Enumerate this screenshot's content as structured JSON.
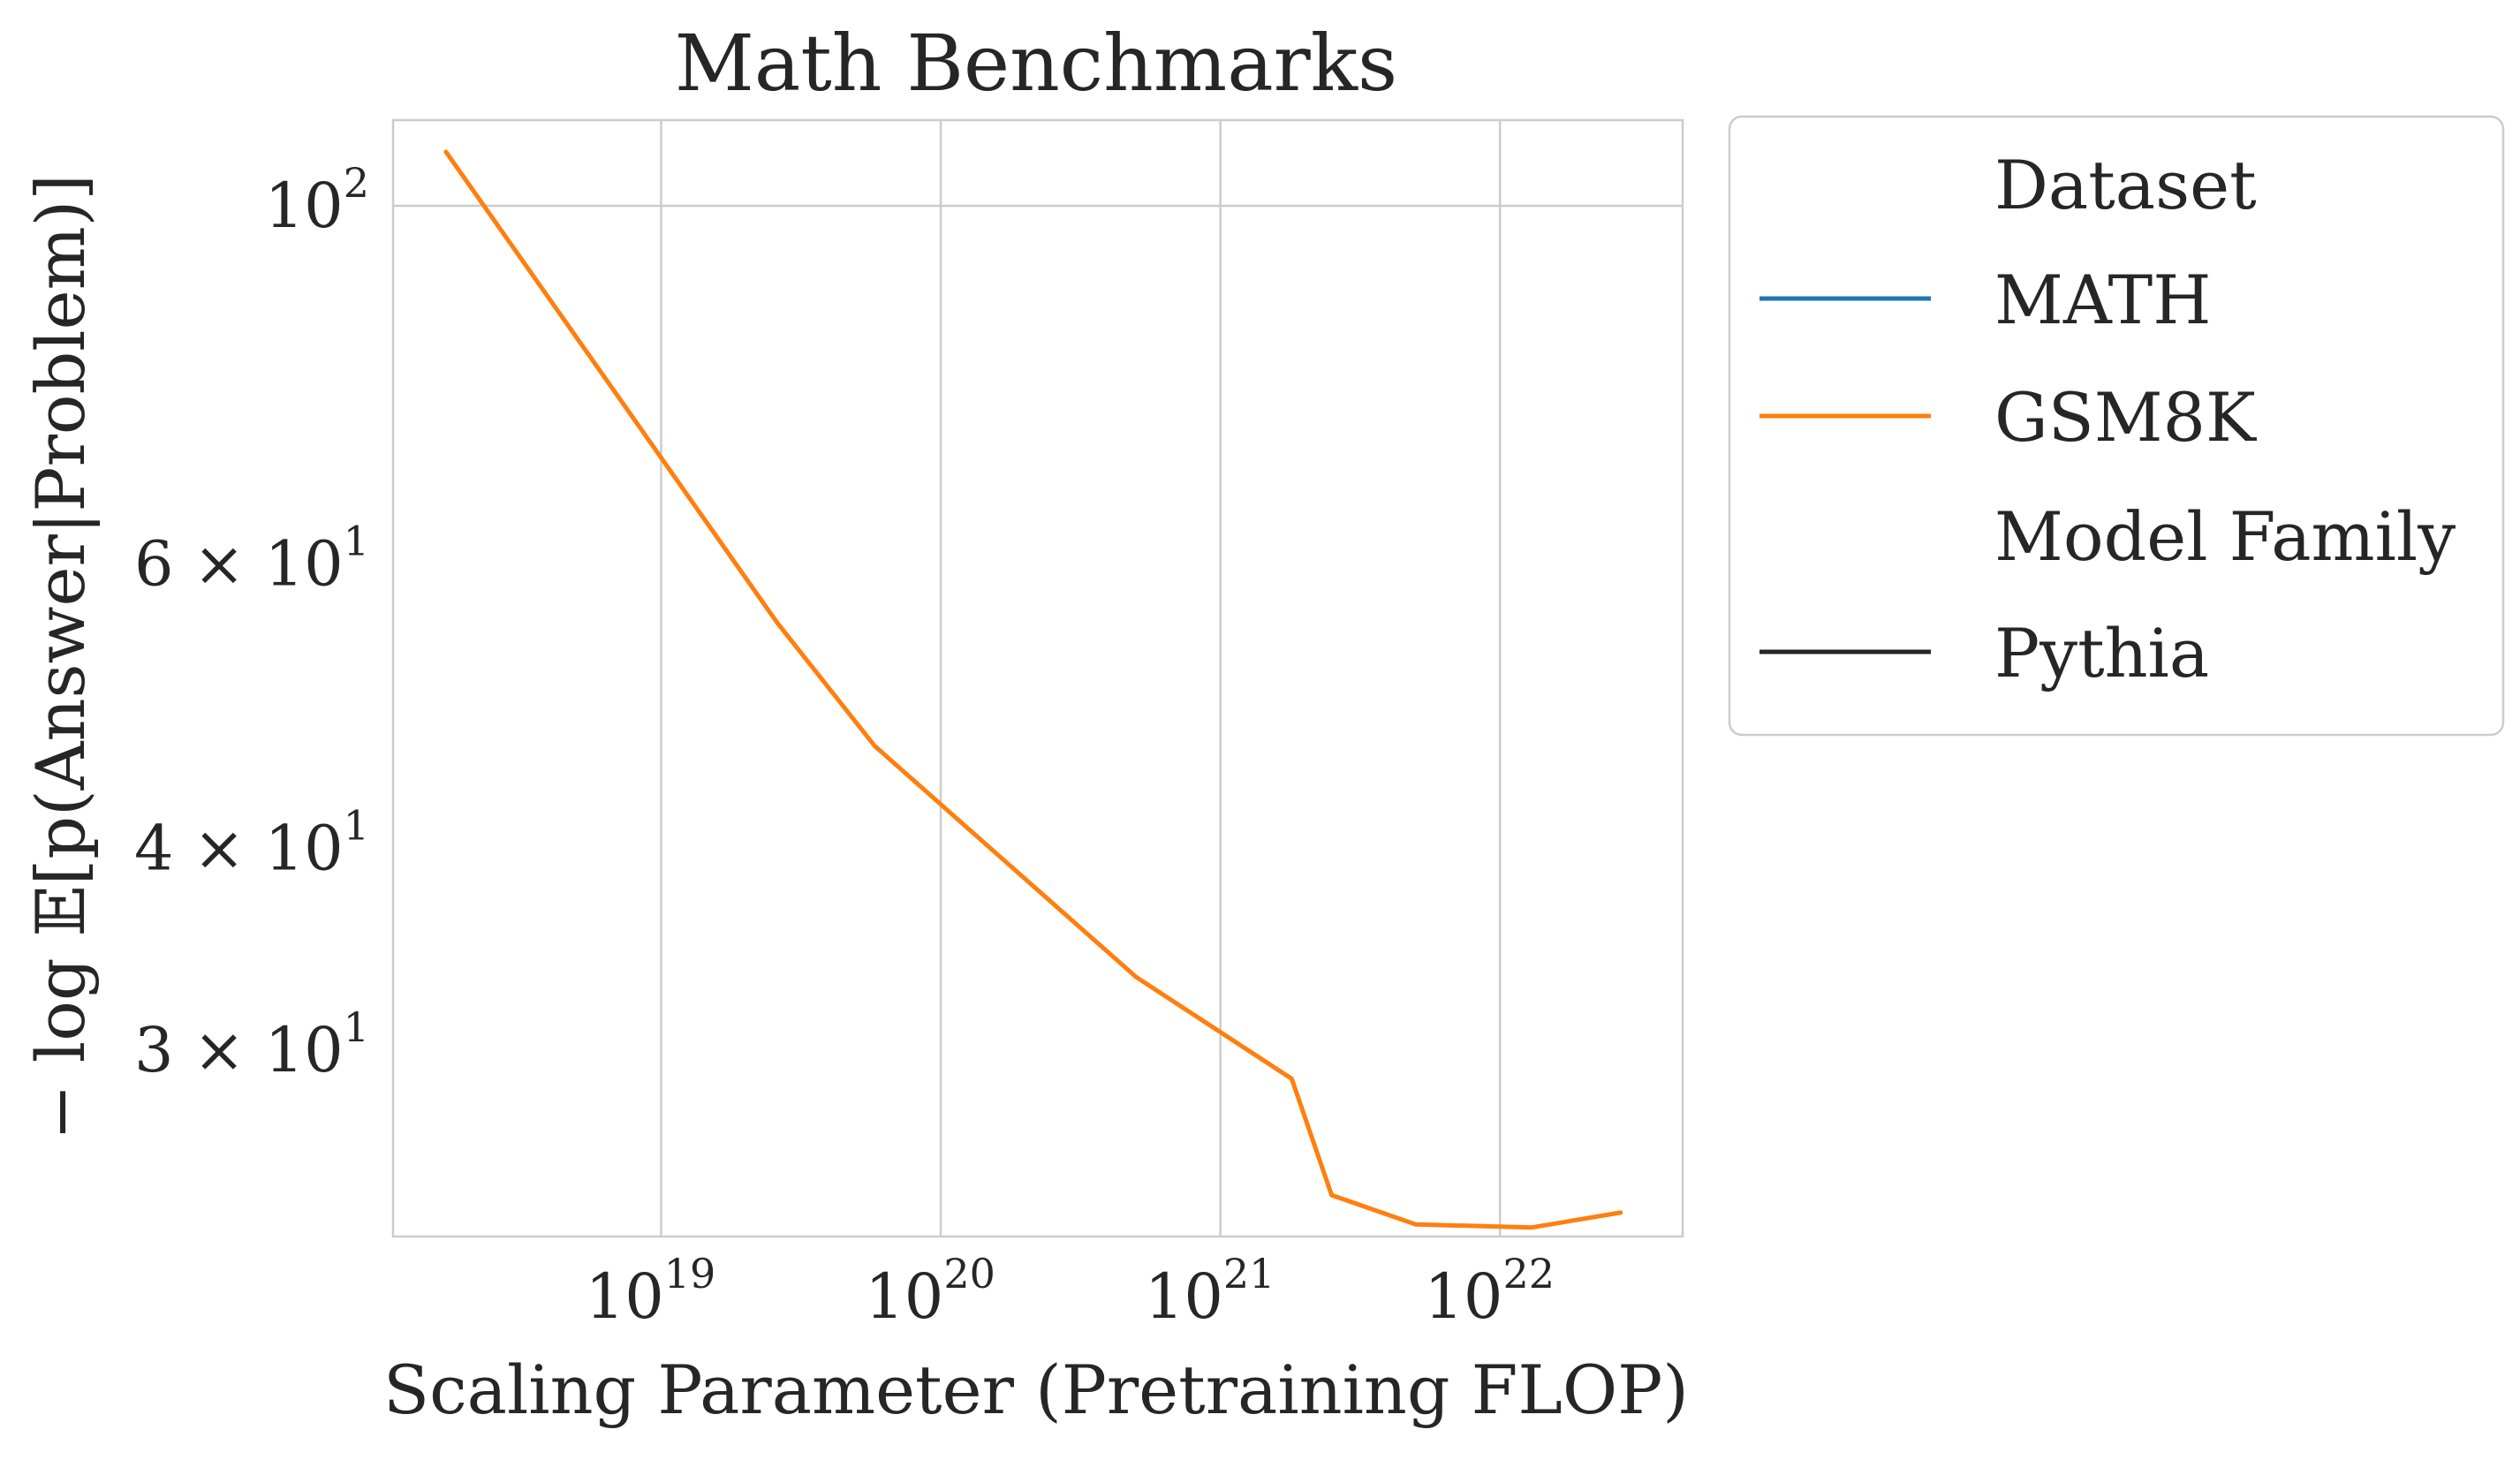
{
  "chart_data": {
    "type": "line",
    "title": "Math Benchmarks",
    "xlabel": "Scaling Parameter (Pretraining FLOP)",
    "ylabel": "− log 𝔼[p(Answer|Problem)]",
    "x_scale": "log",
    "y_scale": "log",
    "xlim": [
      1.1e+18,
      4.5e+22
    ],
    "ylim": [
      23,
      113
    ],
    "grid": true,
    "x_ticks": [
      {
        "value": 1e+19,
        "base": "10",
        "exp": "19"
      },
      {
        "value": 1e+20,
        "base": "10",
        "exp": "20"
      },
      {
        "value": 1e+21,
        "base": "10",
        "exp": "21"
      },
      {
        "value": 1e+22,
        "base": "10",
        "exp": "22"
      }
    ],
    "y_ticks": [
      {
        "value": 100,
        "base": "10",
        "exp": "2"
      },
      {
        "value": 60,
        "base": "6 × 10",
        "exp": "1"
      },
      {
        "value": 40,
        "base": "4 × 10",
        "exp": "1"
      },
      {
        "value": 30,
        "base": "3 × 10",
        "exp": "1"
      }
    ],
    "y_gridlines": [
      100
    ],
    "legend": {
      "placement": "outside-right",
      "entries": [
        {
          "label": "Dataset",
          "kind": "header",
          "color": ""
        },
        {
          "label": "MATH",
          "kind": "line",
          "color": "#1f77b4"
        },
        {
          "label": "GSM8K",
          "kind": "line",
          "color": "#ff7f0e"
        },
        {
          "label": "Model Family",
          "kind": "header",
          "color": ""
        },
        {
          "label": "Pythia",
          "kind": "line",
          "color": "#262626"
        }
      ]
    },
    "series": [
      {
        "name": "GSM8K",
        "color": "#ff7f0e",
        "x": [
          1.7e+18,
          2.6e+19,
          5.8e+19,
          5e+20,
          1.8e+21,
          2.5e+21,
          5e+21,
          1.3e+22,
          2.7e+22
        ],
        "y": [
          108,
          55.2,
          46.3,
          33.3,
          28.8,
          24.4,
          23.4,
          23.3,
          23.8
        ]
      },
      {
        "name": "MATH",
        "color": "#1f77b4",
        "x": [],
        "y": []
      }
    ]
  },
  "colors": {
    "grid": "#cccccc",
    "spine": "#cccccc",
    "text": "#262626",
    "legend_border": "#cccccc"
  }
}
